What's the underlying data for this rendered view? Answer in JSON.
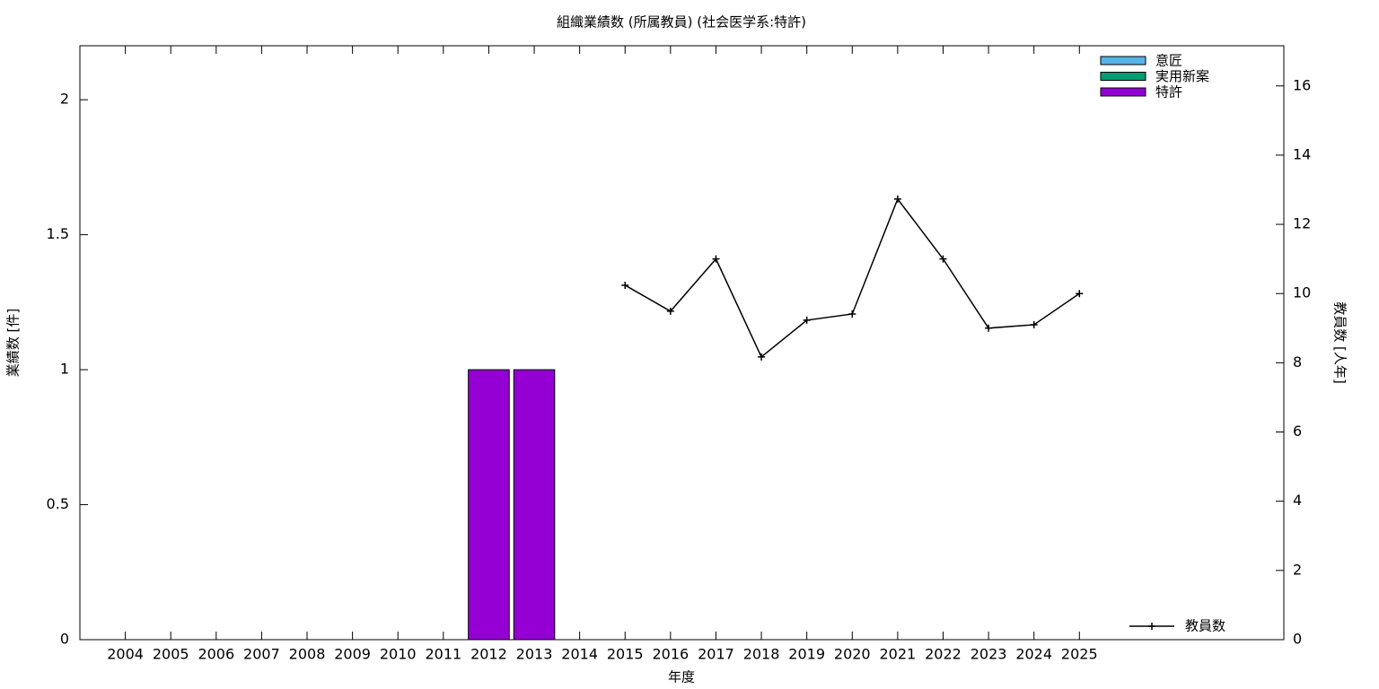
{
  "chart_data": {
    "type": "bar",
    "title": "組織業績数 (所属教員) (社会医学系:特許)",
    "x_label": "年度",
    "y_label": "業績数 [件]",
    "y2_label": "教員数 [人年]",
    "categories": [
      "2004",
      "2005",
      "2006",
      "2007",
      "2008",
      "2009",
      "2010",
      "2011",
      "2012",
      "2013",
      "2014",
      "2015",
      "2016",
      "2017",
      "2018",
      "2019",
      "2020",
      "2021",
      "2022",
      "2023",
      "2024",
      "2025"
    ],
    "stacked": true,
    "series": [
      {
        "name": "意匠",
        "color": "#56b4e9",
        "values": [
          0,
          0,
          0,
          0,
          0,
          0,
          0,
          0,
          0,
          0,
          0,
          0,
          0,
          0,
          0,
          0,
          0,
          0,
          0,
          0,
          0,
          0
        ]
      },
      {
        "name": "実用新案",
        "color": "#009e73",
        "values": [
          0,
          0,
          0,
          0,
          0,
          0,
          0,
          0,
          0,
          0,
          0,
          0,
          0,
          0,
          0,
          0,
          0,
          0,
          0,
          0,
          0,
          0
        ]
      },
      {
        "name": "特許",
        "color": "#9400d3",
        "values": [
          0,
          0,
          0,
          0,
          0,
          0,
          0,
          0,
          1,
          1,
          0,
          0,
          0,
          0,
          0,
          0,
          0,
          0,
          0,
          0,
          0,
          0
        ]
      },
      {
        "name": "教員数",
        "type": "line",
        "axis": "y2",
        "color": "#000000",
        "values": [
          null,
          null,
          null,
          null,
          null,
          null,
          null,
          null,
          null,
          null,
          null,
          10.24,
          9.49,
          11.0,
          8.17,
          9.23,
          9.41,
          12.73,
          11.0,
          9.0,
          9.1,
          10.0
        ]
      }
    ],
    "ylim": [
      0,
      2.2
    ],
    "yticks": [
      0,
      0.5,
      1,
      1.5,
      2
    ],
    "y2lim": [
      0,
      17.16
    ],
    "y2ticks": [
      0,
      2,
      4,
      6,
      8,
      10,
      12,
      14,
      16
    ],
    "legend": "top-right"
  }
}
